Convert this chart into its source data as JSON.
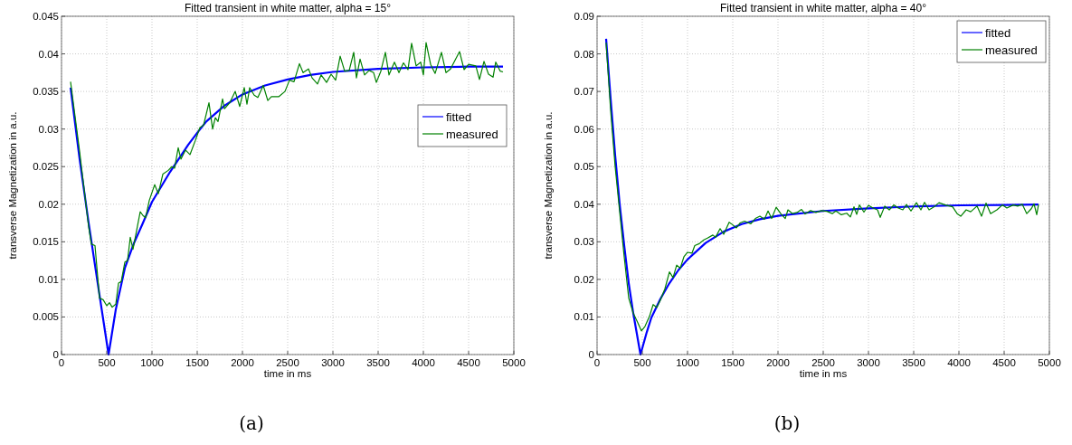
{
  "chart_data": [
    {
      "type": "line",
      "title": "Fitted transient in white matter, alpha = 15°",
      "xlabel": "time in ms",
      "ylabel": "transverse Magnetization in a.u.",
      "annotations": [
        "(a)"
      ],
      "xlim": [
        0,
        5000
      ],
      "xticks": [
        0,
        500,
        1000,
        1500,
        2000,
        2500,
        3000,
        3500,
        4000,
        4500,
        5000
      ],
      "ylim": [
        0,
        0.045
      ],
      "yticks": [
        0,
        0.005,
        0.01,
        0.015,
        0.02,
        0.025,
        0.03,
        0.035,
        0.04,
        0.045
      ],
      "grid": true,
      "legend": "right",
      "line_style": "solid",
      "series": [
        {
          "name": "fitted",
          "color": "#0000ff",
          "x": [
            100,
            200,
            300,
            400,
            520,
            600,
            700,
            800,
            900,
            1000,
            1200,
            1400,
            1500,
            1600,
            1800,
            2000,
            2250,
            2500,
            2750,
            3000,
            3500,
            4000,
            4500,
            4880
          ],
          "values": [
            0.0355,
            0.026,
            0.0175,
            0.0095,
            0,
            0.006,
            0.0115,
            0.0148,
            0.0175,
            0.0203,
            0.0243,
            0.0279,
            0.0295,
            0.031,
            0.0331,
            0.0346,
            0.0358,
            0.0366,
            0.0372,
            0.0376,
            0.038,
            0.0382,
            0.0383,
            0.0383
          ]
        },
        {
          "name": "measured",
          "color": "#008000",
          "x": [
            100,
            200,
            300,
            330,
            370,
            420,
            460,
            500,
            530,
            560,
            600,
            630,
            660,
            700,
            730,
            760,
            790,
            830,
            870,
            900,
            930,
            970,
            1030,
            1070,
            1120,
            1180,
            1220,
            1250,
            1290,
            1320,
            1370,
            1420,
            1480,
            1530,
            1570,
            1630,
            1670,
            1700,
            1730,
            1780,
            1800,
            1860,
            1920,
            1970,
            2020,
            2050,
            2080,
            2130,
            2170,
            2230,
            2280,
            2320,
            2400,
            2470,
            2520,
            2570,
            2630,
            2670,
            2730,
            2770,
            2830,
            2870,
            2930,
            2980,
            3030,
            3080,
            3130,
            3180,
            3230,
            3260,
            3300,
            3350,
            3400,
            3450,
            3480,
            3530,
            3580,
            3620,
            3680,
            3730,
            3780,
            3830,
            3870,
            3920,
            3970,
            4000,
            4030,
            4080,
            4130,
            4200,
            4250,
            4300,
            4400,
            4450,
            4500,
            4580,
            4620,
            4670,
            4720,
            4770,
            4800,
            4850,
            4880
          ],
          "values": [
            0.0363,
            0.027,
            0.017,
            0.0147,
            0.0145,
            0.0075,
            0.0073,
            0.0065,
            0.0069,
            0.0063,
            0.0067,
            0.0095,
            0.0097,
            0.0123,
            0.0125,
            0.0156,
            0.014,
            0.0165,
            0.019,
            0.0185,
            0.0182,
            0.0205,
            0.0226,
            0.0214,
            0.024,
            0.0245,
            0.025,
            0.0248,
            0.0275,
            0.026,
            0.0272,
            0.0266,
            0.0285,
            0.0302,
            0.0305,
            0.0335,
            0.03,
            0.0315,
            0.031,
            0.034,
            0.0327,
            0.0335,
            0.035,
            0.033,
            0.0355,
            0.0333,
            0.0355,
            0.0345,
            0.0342,
            0.0358,
            0.0338,
            0.0343,
            0.0343,
            0.035,
            0.0365,
            0.0363,
            0.0387,
            0.0375,
            0.038,
            0.0368,
            0.036,
            0.0372,
            0.0362,
            0.0373,
            0.0365,
            0.0397,
            0.0377,
            0.0378,
            0.0402,
            0.0368,
            0.0393,
            0.0372,
            0.0378,
            0.0375,
            0.0362,
            0.0377,
            0.0402,
            0.0372,
            0.0389,
            0.0375,
            0.0388,
            0.0379,
            0.0414,
            0.0384,
            0.0389,
            0.0372,
            0.0415,
            0.0386,
            0.0374,
            0.0402,
            0.0375,
            0.038,
            0.0403,
            0.0379,
            0.0386,
            0.0384,
            0.0366,
            0.039,
            0.0373,
            0.0369,
            0.0389,
            0.0377,
            0.0376
          ]
        }
      ]
    },
    {
      "type": "line",
      "title": "Fitted transient in white matter, alpha = 40°",
      "xlabel": "time in ms",
      "ylabel": "transverse Magnetization in a.u.",
      "annotations": [
        "(b)"
      ],
      "xlim": [
        0,
        5000
      ],
      "xticks": [
        0,
        500,
        1000,
        1500,
        2000,
        2500,
        3000,
        3500,
        4000,
        4500,
        5000
      ],
      "ylim": [
        0,
        0.09
      ],
      "yticks": [
        0,
        0.01,
        0.02,
        0.03,
        0.04,
        0.05,
        0.06,
        0.07,
        0.08,
        0.09
      ],
      "grid": true,
      "legend": "top right",
      "line_style": "solid",
      "series": [
        {
          "name": "fitted",
          "color": "#0000ff",
          "x": [
            100,
            150,
            200,
            250,
            300,
            350,
            400,
            480,
            550,
            600,
            700,
            800,
            900,
            1000,
            1200,
            1400,
            1600,
            1800,
            2000,
            2500,
            3000,
            3500,
            4000,
            4500,
            4880
          ],
          "values": [
            0.084,
            0.068,
            0.053,
            0.04,
            0.029,
            0.019,
            0.011,
            0,
            0.006,
            0.0098,
            0.0148,
            0.019,
            0.0225,
            0.0253,
            0.0297,
            0.0327,
            0.0347,
            0.036,
            0.0369,
            0.0382,
            0.0389,
            0.0394,
            0.0397,
            0.0398,
            0.0399
          ]
        },
        {
          "name": "measured",
          "color": "#008000",
          "x": [
            100,
            150,
            200,
            250,
            300,
            350,
            400,
            450,
            490,
            530,
            580,
            620,
            660,
            700,
            750,
            800,
            840,
            880,
            920,
            960,
            1000,
            1050,
            1080,
            1130,
            1180,
            1220,
            1280,
            1310,
            1360,
            1400,
            1460,
            1500,
            1540,
            1580,
            1630,
            1700,
            1750,
            1800,
            1850,
            1890,
            1930,
            1980,
            2030,
            2080,
            2110,
            2160,
            2210,
            2260,
            2300,
            2360,
            2420,
            2480,
            2540,
            2600,
            2640,
            2700,
            2760,
            2800,
            2840,
            2870,
            2900,
            2950,
            3000,
            3050,
            3100,
            3130,
            3180,
            3230,
            3280,
            3330,
            3380,
            3420,
            3470,
            3530,
            3580,
            3620,
            3670,
            3720,
            3780,
            3850,
            3930,
            3980,
            4020,
            4080,
            4130,
            4200,
            4250,
            4300,
            4350,
            4420,
            4480,
            4530,
            4600,
            4650,
            4700,
            4750,
            4800,
            4830,
            4860,
            4880
          ],
          "values": [
            0.083,
            0.065,
            0.05,
            0.038,
            0.026,
            0.015,
            0.011,
            0.0085,
            0.0063,
            0.0075,
            0.0102,
            0.0133,
            0.0125,
            0.0145,
            0.0175,
            0.022,
            0.0205,
            0.0238,
            0.023,
            0.026,
            0.0272,
            0.027,
            0.029,
            0.0295,
            0.0305,
            0.031,
            0.0318,
            0.0312,
            0.0335,
            0.032,
            0.0352,
            0.0345,
            0.0337,
            0.035,
            0.0355,
            0.0348,
            0.0362,
            0.0368,
            0.036,
            0.0382,
            0.0362,
            0.0392,
            0.0375,
            0.0362,
            0.0385,
            0.0375,
            0.0378,
            0.0386,
            0.0374,
            0.0383,
            0.0378,
            0.0383,
            0.0381,
            0.0375,
            0.0382,
            0.0372,
            0.0376,
            0.0366,
            0.0393,
            0.0373,
            0.0398,
            0.0379,
            0.0397,
            0.039,
            0.0385,
            0.0365,
            0.0395,
            0.0385,
            0.0398,
            0.039,
            0.0385,
            0.0399,
            0.0382,
            0.0404,
            0.0385,
            0.0405,
            0.0385,
            0.0392,
            0.0404,
            0.0398,
            0.0393,
            0.0375,
            0.0368,
            0.0385,
            0.038,
            0.0395,
            0.0368,
            0.0403,
            0.0375,
            0.0385,
            0.0398,
            0.039,
            0.0398,
            0.0395,
            0.04,
            0.0375,
            0.0388,
            0.0401,
            0.0372,
            0.0399
          ]
        }
      ]
    }
  ]
}
